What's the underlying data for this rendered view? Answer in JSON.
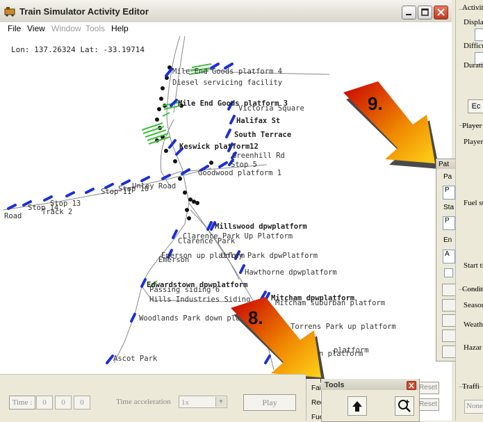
{
  "window": {
    "title": "Train Simulator Activity Editor"
  },
  "menu": [
    {
      "label": "File",
      "enabled": true
    },
    {
      "label": "View",
      "enabled": true
    },
    {
      "label": "Window",
      "enabled": false
    },
    {
      "label": "Tools",
      "enabled": false
    },
    {
      "label": "Help",
      "enabled": true
    }
  ],
  "map": {
    "coords": "Lon: 137.26324 Lat: -33.19714",
    "labels": [
      {
        "text": "Mile End Goods platform 4",
        "bold": false
      },
      {
        "text": "Diesel servicing facility",
        "bold": false
      },
      {
        "text": "Mile End Goods platform 3",
        "bold": true
      },
      {
        "text": "Victoria Square",
        "bold": false
      },
      {
        "text": "Halifax St",
        "bold": true
      },
      {
        "text": "South Terrace",
        "bold": true
      },
      {
        "text": "Keswick platform12",
        "bold": true
      },
      {
        "text": "Greenhill Rd",
        "bold": false
      },
      {
        "text": "Stop 5",
        "bold": false
      },
      {
        "text": "Goodwood platform 1",
        "bold": false
      },
      {
        "text": "Unley Road",
        "bold": false
      },
      {
        "text": "Stop 11",
        "bold": false
      },
      {
        "text": "Stop 10",
        "bold": false
      },
      {
        "text": "Stop 13",
        "bold": false
      },
      {
        "text": "Stop 14",
        "bold": false
      },
      {
        "text": "Track 2",
        "bold": false
      },
      {
        "text": "Road",
        "bold": false
      },
      {
        "text": "Millswood dpwplatform",
        "bold": true
      },
      {
        "text": "Clarence Park Up Platform",
        "bold": false
      },
      {
        "text": "Clarence Park",
        "bold": false
      },
      {
        "text": "Emerson up platform",
        "bold": false
      },
      {
        "text": "Emerson",
        "bold": false
      },
      {
        "text": "Unley Park dpwPlatform",
        "bold": false
      },
      {
        "text": "Hawthorne dpwplatform",
        "bold": false
      },
      {
        "text": "Edwardstown dpwplatform",
        "bold": true
      },
      {
        "text": "Passing siding 6",
        "bold": false
      },
      {
        "text": "Hills Industries Siding",
        "bold": false
      },
      {
        "text": "Mitcham dpwplatform",
        "bold": true
      },
      {
        "text": "Mitcham suburban platform",
        "bold": false
      },
      {
        "text": "Woodlands Park down platform",
        "bold": false
      },
      {
        "text": "Torrens Park up platform",
        "bold": false
      },
      {
        "text": "down platform",
        "bold": false
      },
      {
        "text": "platform",
        "bold": false
      },
      {
        "text": "Ascot Park",
        "bold": false
      }
    ]
  },
  "callouts": [
    {
      "label": "9."
    },
    {
      "label": "8."
    }
  ],
  "bottom": {
    "time_label": "Time :",
    "time_values": [
      "0",
      "0",
      "0"
    ],
    "accel_label": "Time acceleration",
    "accel_value": "1x",
    "play_label": "Play"
  },
  "right_panel": {
    "items": [
      "Activit",
      "Displa",
      "Difficu",
      "Duratio",
      "Ec",
      "Player",
      "Player",
      "Fuel st",
      "Start ti",
      "Conditi",
      "Seasor",
      "Weath",
      "Hazar",
      "Traffi",
      "None"
    ]
  },
  "path_dialog": {
    "title": "Pat",
    "rows": [
      "Pa",
      "P",
      "Sta",
      "P",
      "En",
      "A"
    ]
  },
  "tools": {
    "title": "Tools"
  },
  "side_buttons": {
    "reset1": "Reset",
    "reset2": "Reset",
    "fail": "Fail",
    "red": "Red",
    "fue": "Fue"
  }
}
